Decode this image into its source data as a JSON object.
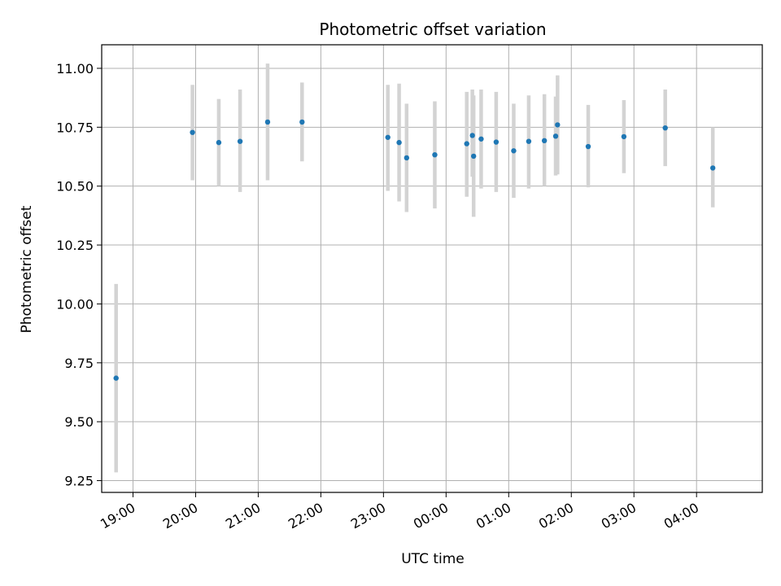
{
  "chart_data": {
    "type": "scatter",
    "title": "Photometric offset variation",
    "xlabel": "UTC time",
    "ylabel": "Photometric offset",
    "x_unit": "hours since 18:00 UTC",
    "xlim": [
      0.5,
      11.05
    ],
    "ylim": [
      9.2,
      11.1
    ],
    "grid": true,
    "x_ticks": [
      {
        "value": 1,
        "label": "19:00"
      },
      {
        "value": 2,
        "label": "20:00"
      },
      {
        "value": 3,
        "label": "21:00"
      },
      {
        "value": 4,
        "label": "22:00"
      },
      {
        "value": 5,
        "label": "23:00"
      },
      {
        "value": 6,
        "label": "00:00"
      },
      {
        "value": 7,
        "label": "01:00"
      },
      {
        "value": 8,
        "label": "02:00"
      },
      {
        "value": 9,
        "label": "03:00"
      },
      {
        "value": 10,
        "label": "04:00"
      }
    ],
    "y_ticks": [
      {
        "value": 9.25,
        "label": "9.25"
      },
      {
        "value": 9.5,
        "label": "9.50"
      },
      {
        "value": 9.75,
        "label": "9.75"
      },
      {
        "value": 10.0,
        "label": "10.00"
      },
      {
        "value": 10.25,
        "label": "10.25"
      },
      {
        "value": 10.5,
        "label": "10.50"
      },
      {
        "value": 10.75,
        "label": "10.75"
      },
      {
        "value": 11.0,
        "label": "11.00"
      }
    ],
    "colors": {
      "point": "#1f77b4",
      "errorbar": "#d3d3d3",
      "grid": "#b0b0b0"
    },
    "points": [
      {
        "x": 0.73,
        "y": 9.685,
        "lo": 9.285,
        "hi": 10.085
      },
      {
        "x": 1.95,
        "y": 10.728,
        "lo": 10.525,
        "hi": 10.93
      },
      {
        "x": 2.37,
        "y": 10.685,
        "lo": 10.5,
        "hi": 10.87
      },
      {
        "x": 2.71,
        "y": 10.69,
        "lo": 10.475,
        "hi": 10.91
      },
      {
        "x": 3.15,
        "y": 10.772,
        "lo": 10.525,
        "hi": 11.02
      },
      {
        "x": 3.7,
        "y": 10.772,
        "lo": 10.605,
        "hi": 10.94
      },
      {
        "x": 5.07,
        "y": 10.707,
        "lo": 10.48,
        "hi": 10.93
      },
      {
        "x": 5.25,
        "y": 10.685,
        "lo": 10.435,
        "hi": 10.935
      },
      {
        "x": 5.37,
        "y": 10.62,
        "lo": 10.39,
        "hi": 10.85
      },
      {
        "x": 5.82,
        "y": 10.633,
        "lo": 10.405,
        "hi": 10.86
      },
      {
        "x": 6.33,
        "y": 10.68,
        "lo": 10.455,
        "hi": 10.9
      },
      {
        "x": 6.42,
        "y": 10.715,
        "lo": 10.54,
        "hi": 10.91
      },
      {
        "x": 6.44,
        "y": 10.627,
        "lo": 10.37,
        "hi": 10.885
      },
      {
        "x": 6.56,
        "y": 10.7,
        "lo": 10.49,
        "hi": 10.91
      },
      {
        "x": 6.8,
        "y": 10.687,
        "lo": 10.475,
        "hi": 10.9
      },
      {
        "x": 7.08,
        "y": 10.65,
        "lo": 10.45,
        "hi": 10.85
      },
      {
        "x": 7.32,
        "y": 10.69,
        "lo": 10.49,
        "hi": 10.885
      },
      {
        "x": 7.57,
        "y": 10.693,
        "lo": 10.5,
        "hi": 10.89
      },
      {
        "x": 7.75,
        "y": 10.712,
        "lo": 10.545,
        "hi": 10.88
      },
      {
        "x": 7.78,
        "y": 10.76,
        "lo": 10.55,
        "hi": 10.97
      },
      {
        "x": 8.27,
        "y": 10.668,
        "lo": 10.495,
        "hi": 10.845
      },
      {
        "x": 8.84,
        "y": 10.71,
        "lo": 10.555,
        "hi": 10.865
      },
      {
        "x": 9.5,
        "y": 10.747,
        "lo": 10.585,
        "hi": 10.91
      },
      {
        "x": 10.26,
        "y": 10.577,
        "lo": 10.41,
        "hi": 10.75
      }
    ]
  }
}
